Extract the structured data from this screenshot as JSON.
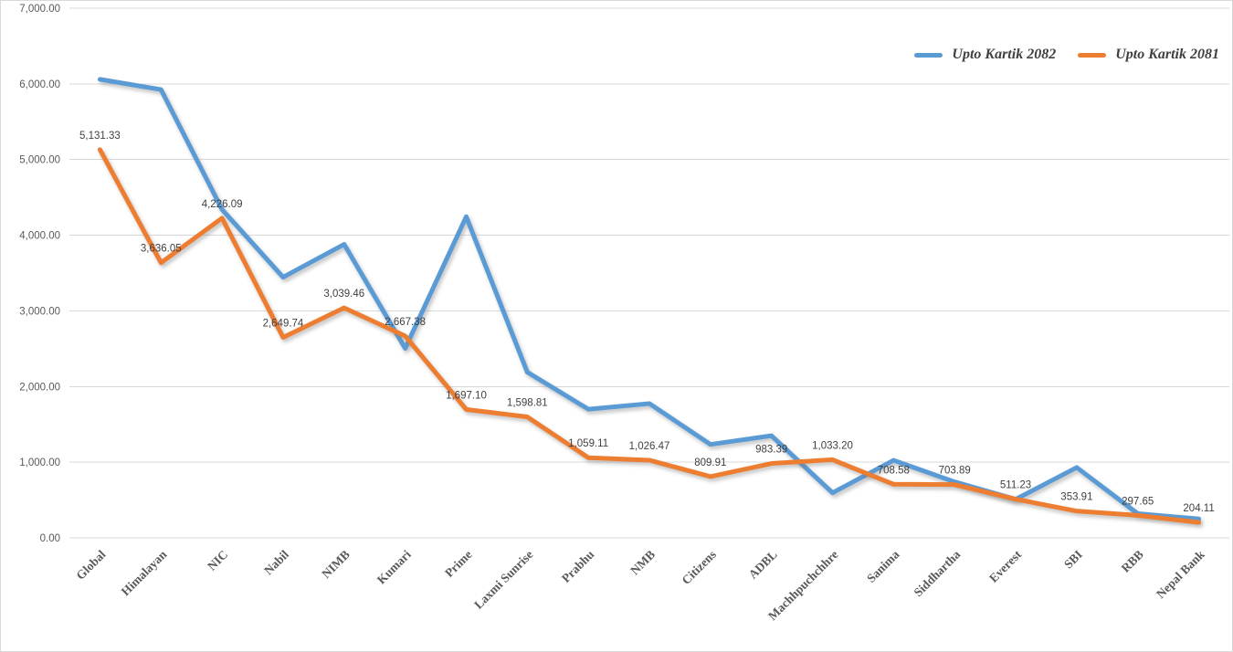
{
  "chart_data": {
    "type": "line",
    "title": "",
    "xlabel": "",
    "ylabel": "",
    "ylim": [
      0,
      7000
    ],
    "ytick_step": 1000,
    "ytick_labels": [
      "0.00",
      "1,000.00",
      "2,000.00",
      "3,000.00",
      "4,000.00",
      "5,000.00",
      "6,000.00",
      "7,000.00"
    ],
    "grid": true,
    "legend_position": "top-right",
    "categories": [
      "Global",
      "Himalayan",
      "NIC",
      "Nabil",
      "NIMB",
      "Kumari",
      "Prime",
      "Laxmi Sunrise",
      "Prabhu",
      "NMB",
      "Citizens",
      "ADBL",
      "Machhpuchchhre",
      "Sanima",
      "Siddhartha",
      "Everest",
      "SBI",
      "RBB",
      "Nepal Bank"
    ],
    "series": [
      {
        "name": "Upto Kartik 2082",
        "color": "#5B9BD5",
        "values": [
          6060,
          5925,
          4340,
          3445,
          3880,
          2505,
          4245,
          2190,
          1700,
          1775,
          1235,
          1350,
          595,
          1025,
          740,
          510,
          930,
          320,
          250
        ]
      },
      {
        "name": "Upto Kartik 2081",
        "color": "#ED7D31",
        "values": [
          5131.33,
          3636.05,
          4226.09,
          2649.74,
          3039.46,
          2667.38,
          1697.1,
          1598.81,
          1059.11,
          1026.47,
          809.91,
          983.39,
          1033.2,
          708.58,
          703.89,
          511.23,
          353.91,
          297.65,
          204.11
        ],
        "labels": [
          "5,131.33",
          "3,636.05",
          "4,226.09",
          "2,649.74",
          "3,039.46",
          "2,667.38",
          "1,697.10",
          "1,598.81",
          "1,059.11",
          "1,026.47",
          "809.91",
          "983.39",
          "1,033.20",
          "708.58",
          "703.89",
          "511.23",
          "353.91",
          "297.65",
          "204.11"
        ]
      }
    ],
    "colors": {
      "grid": "#d9d9d9",
      "axis_text": "#595959",
      "data_label_text": "#404040",
      "series_2082": "#5B9BD5",
      "series_2081": "#ED7D31"
    }
  }
}
